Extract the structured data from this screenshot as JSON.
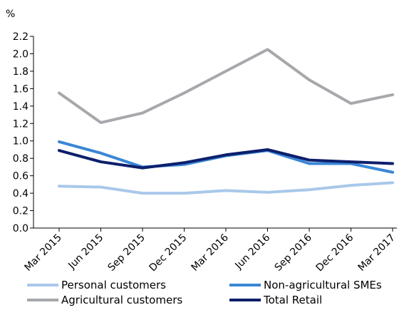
{
  "chart_data": {
    "type": "line",
    "ylabel": "%",
    "ylim": [
      0,
      2.2
    ],
    "ytick_step": 0.2,
    "yticks": [
      "0.0",
      "0.2",
      "0.4",
      "0.6",
      "0.8",
      "1.0",
      "1.2",
      "1.4",
      "1.6",
      "1.8",
      "2.0",
      "2.2"
    ],
    "grid": false,
    "legend_position": "bottom",
    "categories": [
      "Mar 2015",
      "Jun 2015",
      "Sep 2015",
      "Dec 2015",
      "Mar 2016",
      "Jun 2016",
      "Sep 2016",
      "Dec 2016",
      "Mar 2017"
    ],
    "series": [
      {
        "name": "Personal customers",
        "color": "#a9c8ea",
        "values": [
          0.48,
          0.47,
          0.4,
          0.4,
          0.43,
          0.41,
          0.44,
          0.49,
          0.52
        ]
      },
      {
        "name": "Non-agricultural SMEs",
        "color": "#3a86d6",
        "values": [
          0.99,
          0.86,
          0.7,
          0.73,
          0.83,
          0.89,
          0.74,
          0.74,
          0.64
        ]
      },
      {
        "name": "Agricultural customers",
        "color": "#a6a8ab",
        "values": [
          1.55,
          1.21,
          1.32,
          1.55,
          1.8,
          2.05,
          1.7,
          1.43,
          1.53
        ]
      },
      {
        "name": "Total Retail",
        "color": "#0d1f6b",
        "values": [
          0.89,
          0.76,
          0.69,
          0.75,
          0.84,
          0.9,
          0.78,
          0.76,
          0.74
        ]
      }
    ]
  }
}
